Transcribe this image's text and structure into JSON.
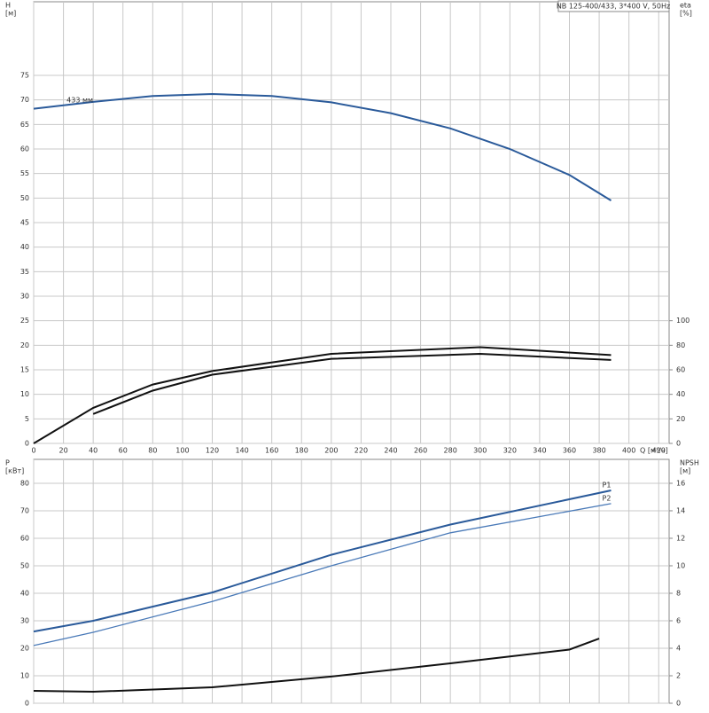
{
  "chart_data": [
    {
      "type": "line",
      "title": "NB 125-400/433, 3*400 V, 50Hz",
      "xlabel": "Q [м³/ч]",
      "ylabel": "H",
      "yunit": "[м]",
      "y2label": "eta",
      "y2unit": "[%]",
      "xlim": [
        0,
        427
      ],
      "xticks": [
        0,
        20,
        40,
        60,
        80,
        100,
        120,
        140,
        160,
        180,
        200,
        220,
        240,
        260,
        280,
        300,
        320,
        340,
        360,
        380,
        400,
        420
      ],
      "ylim": [
        0,
        90
      ],
      "yticks": [
        0,
        5,
        10,
        15,
        20,
        25,
        30,
        35,
        40,
        45,
        50,
        55,
        60,
        65,
        70,
        75
      ],
      "y2lim": [
        0,
        360
      ],
      "y2ticks": [
        0,
        20,
        40,
        60,
        80,
        100
      ],
      "grid": true,
      "series": [
        {
          "name": "433 мм",
          "color": "#2a5a9a",
          "x": [
            0,
            40,
            80,
            120,
            160,
            200,
            240,
            280,
            320,
            360,
            388
          ],
          "values": [
            68.2,
            69.6,
            70.8,
            71.2,
            70.8,
            69.5,
            67.3,
            64.2,
            60,
            54.7,
            49.5
          ]
        },
        {
          "color": "#111111",
          "axis": "y2",
          "x": [
            0,
            40,
            80,
            120,
            200,
            300,
            388
          ],
          "values": [
            0,
            29,
            48,
            59,
            73,
            78.4,
            72
          ]
        },
        {
          "color": "#111111",
          "axis": "y2",
          "x": [
            40,
            80,
            120,
            200,
            300,
            388
          ],
          "values": [
            24,
            43,
            56,
            69,
            73,
            68
          ]
        }
      ]
    },
    {
      "type": "line",
      "ylabel": "P",
      "yunit": "[кВт]",
      "y2label": "NPSH",
      "y2unit": "[м]",
      "xlim": [
        0,
        427
      ],
      "ylim": [
        0,
        88.7
      ],
      "yticks": [
        0,
        10,
        20,
        30,
        40,
        50,
        60,
        70,
        80
      ],
      "y2lim": [
        0,
        17.74
      ],
      "y2ticks": [
        0,
        2,
        4,
        6,
        8,
        10,
        12,
        14,
        16
      ],
      "grid": true,
      "series": [
        {
          "name": "P1",
          "color": "#2a5a9a",
          "x": [
            0,
            40,
            120,
            200,
            280,
            388
          ],
          "values": [
            26.1,
            30,
            40.3,
            54,
            65,
            77.4
          ]
        },
        {
          "name": "P2",
          "color": "#4a7ab8",
          "x": [
            0,
            40,
            120,
            200,
            280,
            388
          ],
          "values": [
            21,
            25.8,
            37,
            50,
            62,
            72.6
          ]
        },
        {
          "color": "#111111",
          "axis": "y2",
          "x": [
            0,
            40,
            120,
            200,
            280,
            360,
            380
          ],
          "values": [
            0.9,
            0.84,
            1.16,
            1.94,
            2.9,
            3.9,
            4.7
          ]
        }
      ]
    }
  ]
}
